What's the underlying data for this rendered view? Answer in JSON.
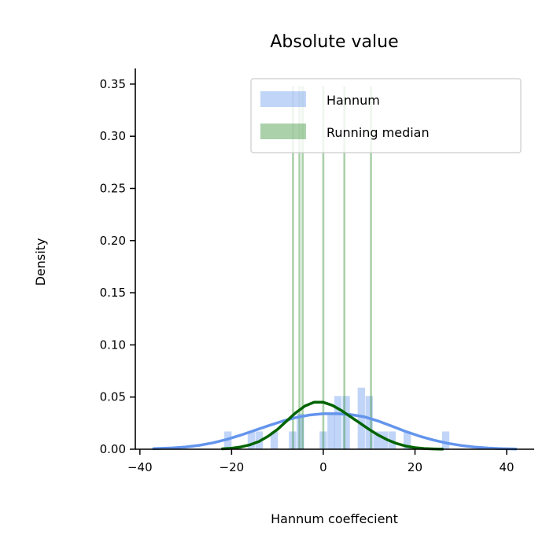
{
  "chart_data": {
    "type": "histogram",
    "title": "Absolute value",
    "xlabel": "Hannum coeffecient",
    "ylabel": "Density",
    "xlim": [
      -41,
      46
    ],
    "ylim": [
      0,
      0.365
    ],
    "x_ticks": [
      {
        "value": -40,
        "label": "−40"
      },
      {
        "value": -20,
        "label": "−20"
      },
      {
        "value": 0,
        "label": "0"
      },
      {
        "value": 20,
        "label": "20"
      },
      {
        "value": 40,
        "label": "40"
      }
    ],
    "y_ticks": [
      {
        "value": 0.0,
        "label": "0.00"
      },
      {
        "value": 0.05,
        "label": "0.05"
      },
      {
        "value": 0.1,
        "label": "0.10"
      },
      {
        "value": 0.15,
        "label": "0.15"
      },
      {
        "value": 0.2,
        "label": "0.20"
      },
      {
        "value": 0.25,
        "label": "0.25"
      },
      {
        "value": 0.3,
        "label": "0.30"
      },
      {
        "value": 0.35,
        "label": "0.35"
      }
    ],
    "grid": false,
    "legend_position": "top-right",
    "series": [
      {
        "name": "Hannum",
        "color": "#6495ED",
        "bar_width": 1.6,
        "bars": [
          {
            "x": -20.8,
            "y": 0.017
          },
          {
            "x": -15.7,
            "y": 0.017
          },
          {
            "x": -14.0,
            "y": 0.017
          },
          {
            "x": -10.7,
            "y": 0.017
          },
          {
            "x": -6.7,
            "y": 0.017
          },
          {
            "x": -5.0,
            "y": 0.034
          },
          {
            "x": 0.0,
            "y": 0.017
          },
          {
            "x": 1.7,
            "y": 0.034
          },
          {
            "x": 3.2,
            "y": 0.051
          },
          {
            "x": 5.0,
            "y": 0.051
          },
          {
            "x": 8.3,
            "y": 0.059
          },
          {
            "x": 10.0,
            "y": 0.051
          },
          {
            "x": 11.7,
            "y": 0.017
          },
          {
            "x": 13.3,
            "y": 0.017
          },
          {
            "x": 15.0,
            "y": 0.017
          },
          {
            "x": 18.3,
            "y": 0.017
          },
          {
            "x": 26.7,
            "y": 0.017
          }
        ],
        "kde": {
          "x": [
            -37,
            -33,
            -30,
            -27,
            -24,
            -21,
            -18,
            -15,
            -12,
            -9,
            -6,
            -3,
            0,
            3,
            6,
            9,
            12,
            15,
            18,
            21,
            24,
            27,
            30,
            33,
            36,
            39,
            42
          ],
          "y": [
            0.0005,
            0.0012,
            0.0022,
            0.0038,
            0.0062,
            0.0095,
            0.0135,
            0.018,
            0.0225,
            0.0268,
            0.0303,
            0.0328,
            0.034,
            0.034,
            0.0332,
            0.031,
            0.027,
            0.022,
            0.017,
            0.0125,
            0.0088,
            0.0058,
            0.0036,
            0.0021,
            0.0011,
            0.0005,
            0.0002
          ]
        }
      },
      {
        "name": "Running median",
        "color": "#2E8B2E",
        "bar_width": 0.45,
        "bars": [
          {
            "x": -6.6,
            "y": 0.348
          },
          {
            "x": -5.2,
            "y": 0.348
          },
          {
            "x": -4.5,
            "y": 0.348
          },
          {
            "x": 0.0,
            "y": 0.348
          },
          {
            "x": 4.6,
            "y": 0.348
          },
          {
            "x": 10.4,
            "y": 0.348
          }
        ],
        "kde": {
          "color": "#006400",
          "x": [
            -22,
            -20,
            -18,
            -16,
            -14,
            -12,
            -10,
            -8,
            -6,
            -4,
            -2,
            0,
            2,
            4,
            6,
            8,
            10,
            12,
            14,
            16,
            18,
            20,
            22,
            24,
            26
          ],
          "y": [
            0.0004,
            0.001,
            0.0022,
            0.0042,
            0.0075,
            0.0125,
            0.019,
            0.027,
            0.035,
            0.0415,
            0.045,
            0.045,
            0.042,
            0.037,
            0.031,
            0.025,
            0.019,
            0.0135,
            0.009,
            0.0055,
            0.003,
            0.0015,
            0.0007,
            0.0003,
            0.0001
          ]
        }
      }
    ]
  }
}
